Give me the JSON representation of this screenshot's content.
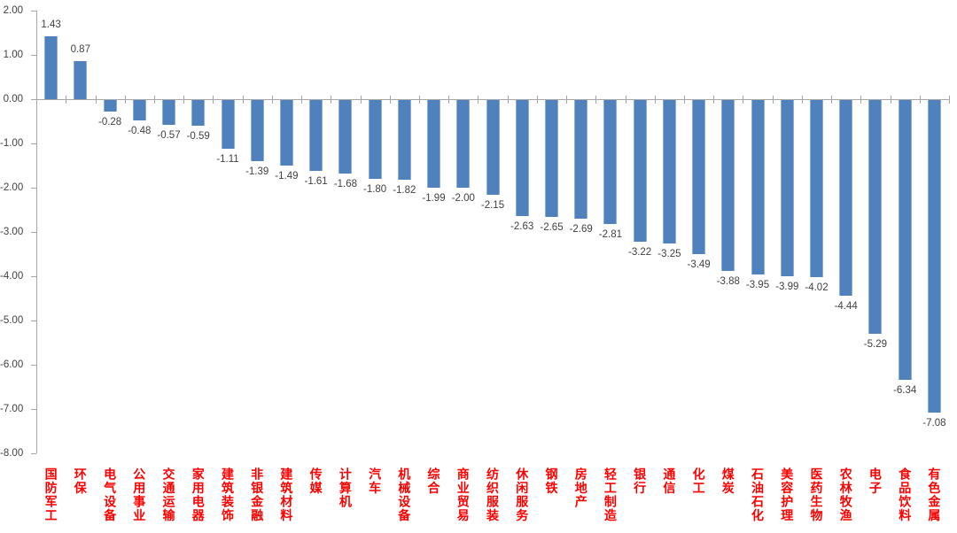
{
  "chart_data": {
    "type": "bar",
    "title": "",
    "xlabel": "",
    "ylabel": "",
    "categories": [
      "国防军工",
      "环保",
      "电气设备",
      "公用事业",
      "交通运输",
      "家用电器",
      "建筑装饰",
      "非银金融",
      "建筑材料",
      "传媒",
      "计算机",
      "汽车",
      "机械设备",
      "综合",
      "商业贸易",
      "纺织服装",
      "休闲服务",
      "钢铁",
      "房地产",
      "轻工制造",
      "银行",
      "通信",
      "化工",
      "煤炭",
      "石油石化",
      "美容护理",
      "医药生物",
      "农林牧渔",
      "电子",
      "食品饮料",
      "有色金属"
    ],
    "values": [
      1.43,
      0.87,
      -0.28,
      -0.48,
      -0.57,
      -0.59,
      -1.11,
      -1.39,
      -1.49,
      -1.61,
      -1.68,
      -1.8,
      -1.82,
      -1.99,
      -2.0,
      -2.15,
      -2.63,
      -2.65,
      -2.69,
      -2.81,
      -3.22,
      -3.25,
      -3.49,
      -3.88,
      -3.95,
      -3.99,
      -4.02,
      -4.44,
      -5.29,
      -6.34,
      -7.08
    ],
    "ylim": [
      -8.0,
      2.0
    ],
    "y_tick_step": 1.0,
    "y_tick_labels": [
      "2.00",
      "1.00",
      "0.00",
      "-1.00",
      "-2.00",
      "-3.00",
      "-4.00",
      "-5.00",
      "-6.00",
      "-7.00",
      "-8.00"
    ],
    "grid": "off",
    "legend": "none",
    "value_labels_visible": true,
    "colors": {
      "bar": "#4F81BD",
      "value_label": "#404040",
      "category_label": "#FF0000",
      "axis": "#A6A6A6",
      "y_tick_label": "#404040",
      "background": "#FFFFFF"
    }
  }
}
